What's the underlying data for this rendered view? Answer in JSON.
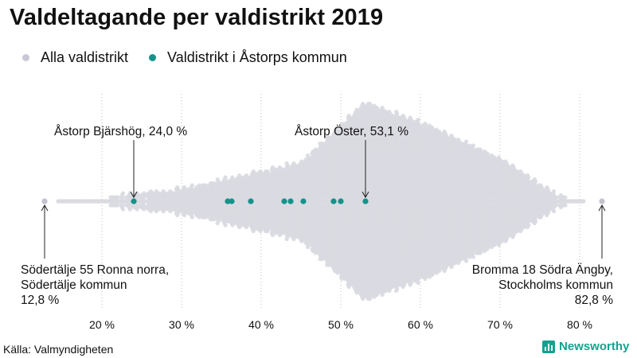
{
  "title": "Valdeltagande per valdistrikt 2019",
  "legend": [
    {
      "label": "Alla valdistrikt",
      "color": "#c8c8d4"
    },
    {
      "label": "Valdistrikt i Åstorps kommun",
      "color": "#14938a"
    }
  ],
  "source": "Källa: Valmyndigheten",
  "logo_text": "Newsworthy",
  "colors": {
    "background_points": "#d9d9e1",
    "highlight": "#14938a",
    "extreme": "#c3c3cf",
    "grid": "#bbbbbb"
  },
  "chart_data": {
    "type": "scatter",
    "subtype": "beeswarm",
    "title": "Valdeltagande per valdistrikt 2019",
    "x_unit": "%",
    "xlim": [
      12.8,
      82.8
    ],
    "xticks": [
      20,
      30,
      40,
      50,
      60,
      70,
      80
    ],
    "tick_labels": [
      "20 %",
      "30 %",
      "40 %",
      "50 %",
      "60 %",
      "70 %",
      "80 %"
    ],
    "grid": "vertical dotted",
    "series": [
      {
        "name": "Alla valdistrikt",
        "distribution": "dense swarm peaking near 53 %"
      },
      {
        "name": "Valdistrikt i Åstorps kommun",
        "values": [
          24.0,
          35.8,
          36.3,
          38.7,
          42.9,
          43.7,
          45.3,
          49.1,
          50.0,
          53.1
        ]
      }
    ],
    "extremes": [
      12.8,
      82.8
    ],
    "annotations": [
      {
        "label": "Åstorp  Bjärshög, 24,0 %",
        "value": 24.0
      },
      {
        "label": "Åstorp  Öster, 53,1 %",
        "value": 53.1
      },
      {
        "lines": [
          "Södertälje 55 Ronna norra,",
          "Södertälje kommun",
          "12,8 %"
        ],
        "value": 12.8
      },
      {
        "lines": [
          "Bromma 18 Södra Ängby,",
          "Stockholms kommun",
          "82,8 %"
        ],
        "value": 82.8
      }
    ]
  }
}
